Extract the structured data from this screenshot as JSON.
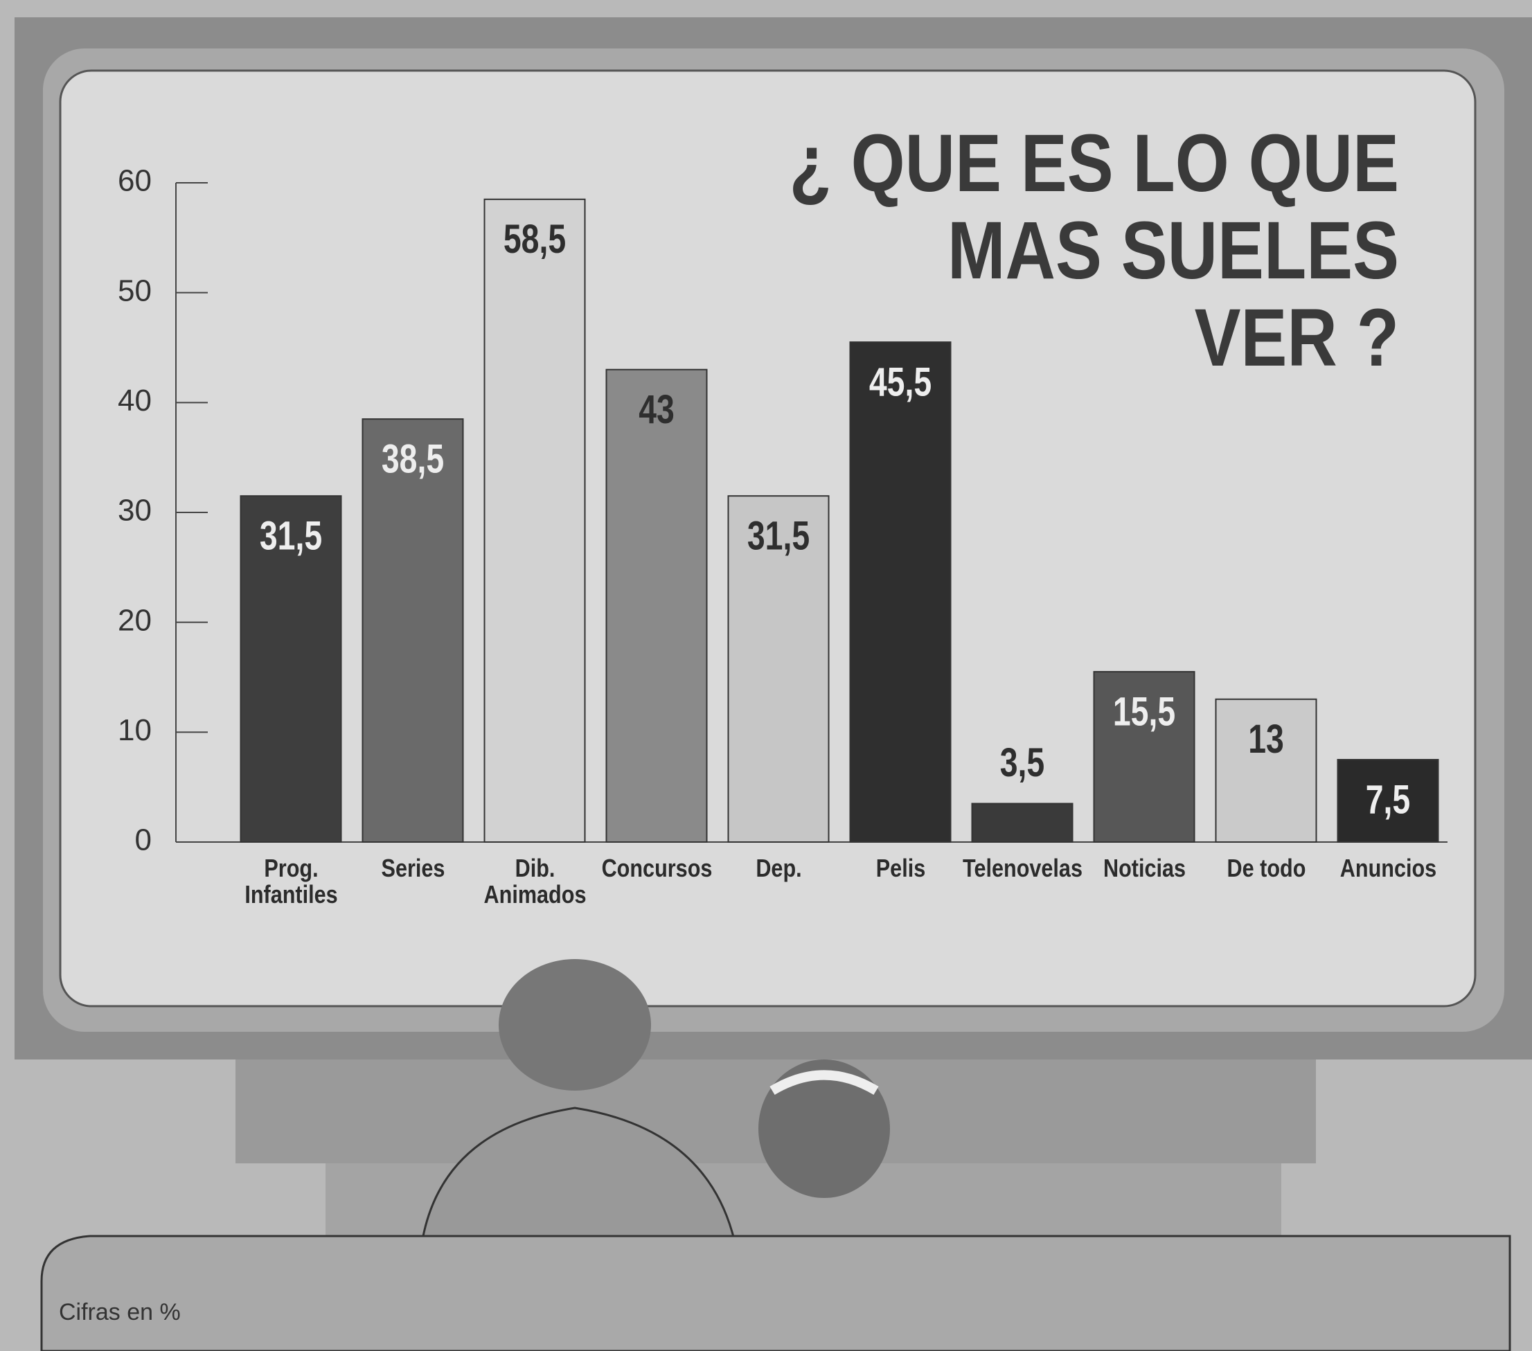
{
  "chart_data": {
    "type": "bar",
    "title": [
      "¿ QUE ES LO QUE",
      "MAS SUELES",
      "VER ?"
    ],
    "categories": [
      "Prog. Infantiles",
      "Series",
      "Dib. Animados",
      "Concursos",
      "Dep.",
      "Pelis",
      "Telenovelas",
      "Noticias",
      "De todo",
      "Anuncios"
    ],
    "values": [
      31.5,
      38.5,
      58.5,
      43,
      31.5,
      45.5,
      3.5,
      15.5,
      13,
      7.5
    ],
    "value_labels": [
      "31,5",
      "38,5",
      "58,5",
      "43",
      "31,5",
      "45,5",
      "3,5",
      "15,5",
      "13",
      "7,5"
    ],
    "colors": [
      "#3e3e3e",
      "#6a6a6a",
      "#d2d2d2",
      "#8a8a8a",
      "#c6c6c6",
      "#2f2f2f",
      "#3a3a3a",
      "#575757",
      "#cacaca",
      "#2a2a2a"
    ],
    "ylim": [
      0,
      60
    ],
    "yticks": [
      0,
      10,
      20,
      30,
      40,
      50,
      60
    ],
    "grid": false,
    "note": "Cifras en %"
  }
}
